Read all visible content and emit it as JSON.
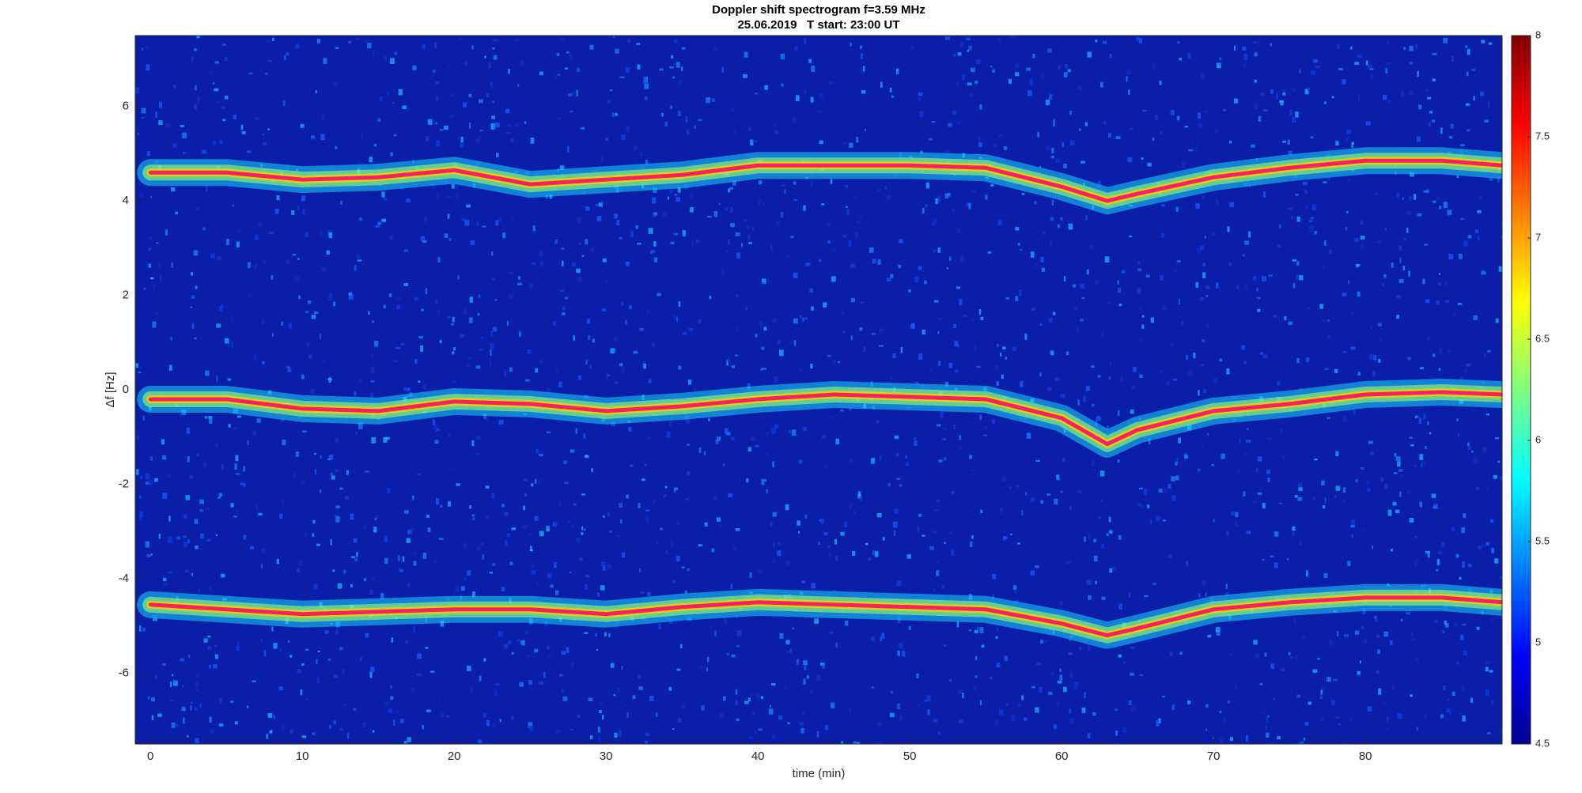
{
  "chart_data": {
    "type": "spectrogram",
    "title": "Doppler shift spectrogram f=3.59 MHz",
    "subtitle": "25.06.2019   T start: 23:00 UT",
    "x_label": "time (min)",
    "y_label": "Δf [Hz]",
    "xlim": [
      -1,
      89
    ],
    "xticks": [
      0,
      10,
      20,
      30,
      40,
      50,
      60,
      70,
      80
    ],
    "ylim": [
      -7.5,
      7.5
    ],
    "yticks": [
      -6,
      -4,
      -2,
      0,
      2,
      4,
      6
    ],
    "x": [
      0,
      5,
      10,
      15,
      20,
      25,
      30,
      35,
      40,
      45,
      50,
      55,
      60,
      63,
      65,
      70,
      75,
      80,
      85,
      89
    ],
    "series": [
      {
        "color": "#ff00ff",
        "values": [
          4.6,
          4.6,
          4.45,
          4.5,
          4.65,
          4.35,
          4.45,
          4.55,
          4.75,
          4.75,
          4.75,
          4.7,
          4.3,
          4.0,
          4.15,
          4.5,
          4.7,
          4.85,
          4.85,
          4.75
        ]
      },
      {
        "color": "#ff00ff",
        "values": [
          -0.2,
          -0.2,
          -0.4,
          -0.45,
          -0.25,
          -0.3,
          -0.45,
          -0.35,
          -0.2,
          -0.1,
          -0.15,
          -0.2,
          -0.6,
          -1.15,
          -0.85,
          -0.45,
          -0.3,
          -0.1,
          -0.05,
          -0.1
        ]
      },
      {
        "color": "#ff00ff",
        "values": [
          -4.55,
          -4.65,
          -4.75,
          -4.7,
          -4.65,
          -4.65,
          -4.75,
          -4.6,
          -4.5,
          -4.55,
          -4.6,
          -4.65,
          -4.95,
          -5.2,
          -5.05,
          -4.65,
          -4.5,
          -4.4,
          -4.4,
          -4.5
        ]
      }
    ],
    "colorbar": {
      "lim": [
        4.5,
        8
      ],
      "ticks": [
        4.5,
        5,
        5.5,
        6,
        6.5,
        7,
        7.5,
        8
      ]
    }
  }
}
